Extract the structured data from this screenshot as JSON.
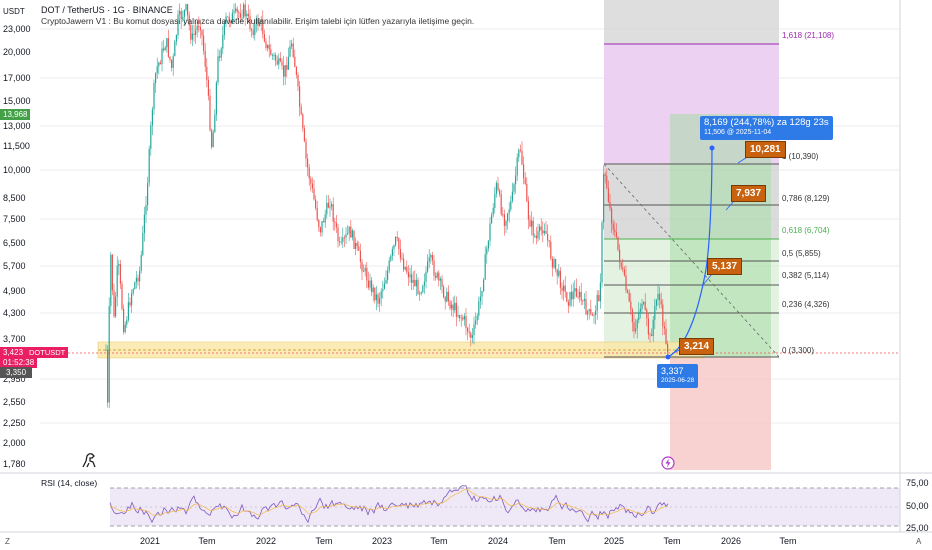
{
  "header": {
    "title": "DOT / TetherUS · 1G · BINANCE",
    "subtitle": "CryptoJawern V1 : Bu komut dosyası yalnızca davetle kullanılabilir. Erişim talebi için lütfen yazarıyla iletişime geçin."
  },
  "price_axis": {
    "unit": "USDT",
    "labels": [
      "23,000",
      "20,000",
      "17,000",
      "15,000",
      "13,000",
      "11,500",
      "10,000",
      "8,500",
      "7,500",
      "6,500",
      "5,700",
      "4,900",
      "4,300",
      "3,700",
      "2,950",
      "2,550",
      "2,250",
      "2,000",
      "1,780"
    ],
    "badges": {
      "high": "13,968",
      "symbol": "DOTUSDT",
      "last": "3,423",
      "countdown": "01:52:38",
      "low": "3,350"
    }
  },
  "time_axis": {
    "labels": [
      "2021",
      "Tem",
      "2022",
      "Tem",
      "2023",
      "Tem",
      "2024",
      "Tem",
      "2025",
      "Tem",
      "2026",
      "Tem"
    ]
  },
  "fib_levels": [
    "1,618 (21,108)",
    "1 (10,390)",
    "0,786 (8,129)",
    "0,618 (6,704)",
    "0,5 (5,855)",
    "0,382 (5,114)",
    "0,236 (4,326)",
    "0 (3,300)"
  ],
  "targets": [
    "10,281",
    "7,937",
    "5,137",
    "3,214"
  ],
  "projection": {
    "label": "8,169 (244,78%) za 128g 23s",
    "sub": "11,506 @ 2025-11-04"
  },
  "start_point": {
    "price": "3,337",
    "date": "2025-06-28"
  },
  "rsi": {
    "title": "RSI (14, close)",
    "labels": [
      "75,00",
      "50,00",
      "25,00"
    ]
  },
  "colors": {
    "up": "#26a69a",
    "down": "#ef5350",
    "rsi": "#7e57c2",
    "accent": "#2962ff"
  },
  "icons": {
    "logo": "dino-icon",
    "event": "lightning-icon",
    "autoscale": "auto-icon"
  }
}
